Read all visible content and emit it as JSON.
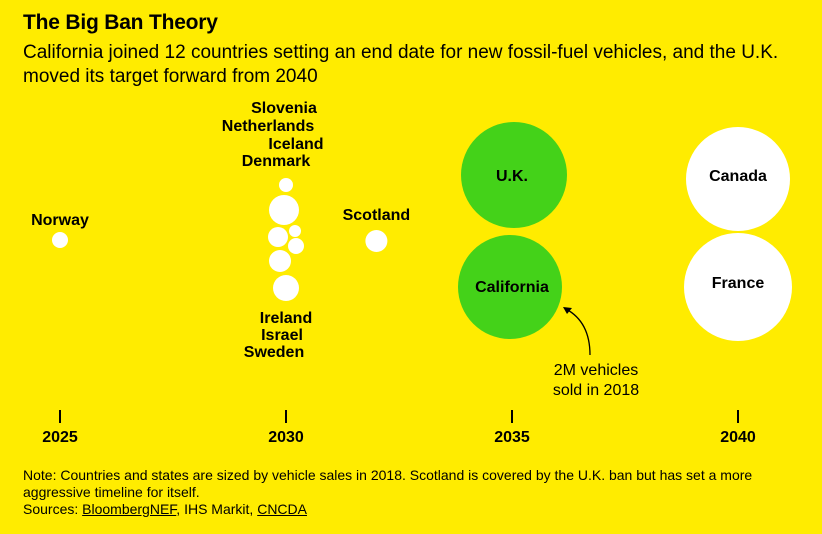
{
  "title": "The Big Ban Theory",
  "subtitle": "California joined 12 countries setting an end date for new fossil-fuel vehicles, and the U.K. moved its target forward from 2040",
  "note": "Note: Countries and states are sized by vehicle sales in 2018. Scotland is covered by the U.K. ban but has set a more aggressive timeline for itself.",
  "sources_label": "Sources: ",
  "sources": [
    "BloombergNEF",
    "IHS Markit",
    "CNCDA"
  ],
  "colors": {
    "background": "#FFEC00",
    "country": "#FFFFFF",
    "highlight": "#44D219",
    "text": "#000000"
  },
  "chart_data": {
    "type": "bubble",
    "x_axis": {
      "ticks": [
        2025,
        2030,
        2035,
        2040
      ],
      "range": [
        2025,
        2040
      ]
    },
    "size_encoding": "vehicle sales in 2018",
    "points": [
      {
        "name": "Norway",
        "year": 2025,
        "highlight": false
      },
      {
        "name": "Slovenia",
        "year": 2030,
        "highlight": false
      },
      {
        "name": "Netherlands",
        "year": 2030,
        "highlight": false
      },
      {
        "name": "Iceland",
        "year": 2030,
        "highlight": false
      },
      {
        "name": "Denmark",
        "year": 2030,
        "highlight": false
      },
      {
        "name": "Ireland",
        "year": 2030,
        "highlight": false
      },
      {
        "name": "Israel",
        "year": 2030,
        "highlight": false
      },
      {
        "name": "Sweden",
        "year": 2030,
        "highlight": false
      },
      {
        "name": "Scotland",
        "year": 2032,
        "highlight": false
      },
      {
        "name": "U.K.",
        "year": 2035,
        "highlight": true
      },
      {
        "name": "California",
        "year": 2035,
        "highlight": true
      },
      {
        "name": "Canada",
        "year": 2040,
        "highlight": false
      },
      {
        "name": "France",
        "year": 2040,
        "highlight": false
      }
    ],
    "annotation": {
      "target": "California",
      "lines": [
        "2M vehicles",
        "sold in 2018"
      ]
    }
  }
}
